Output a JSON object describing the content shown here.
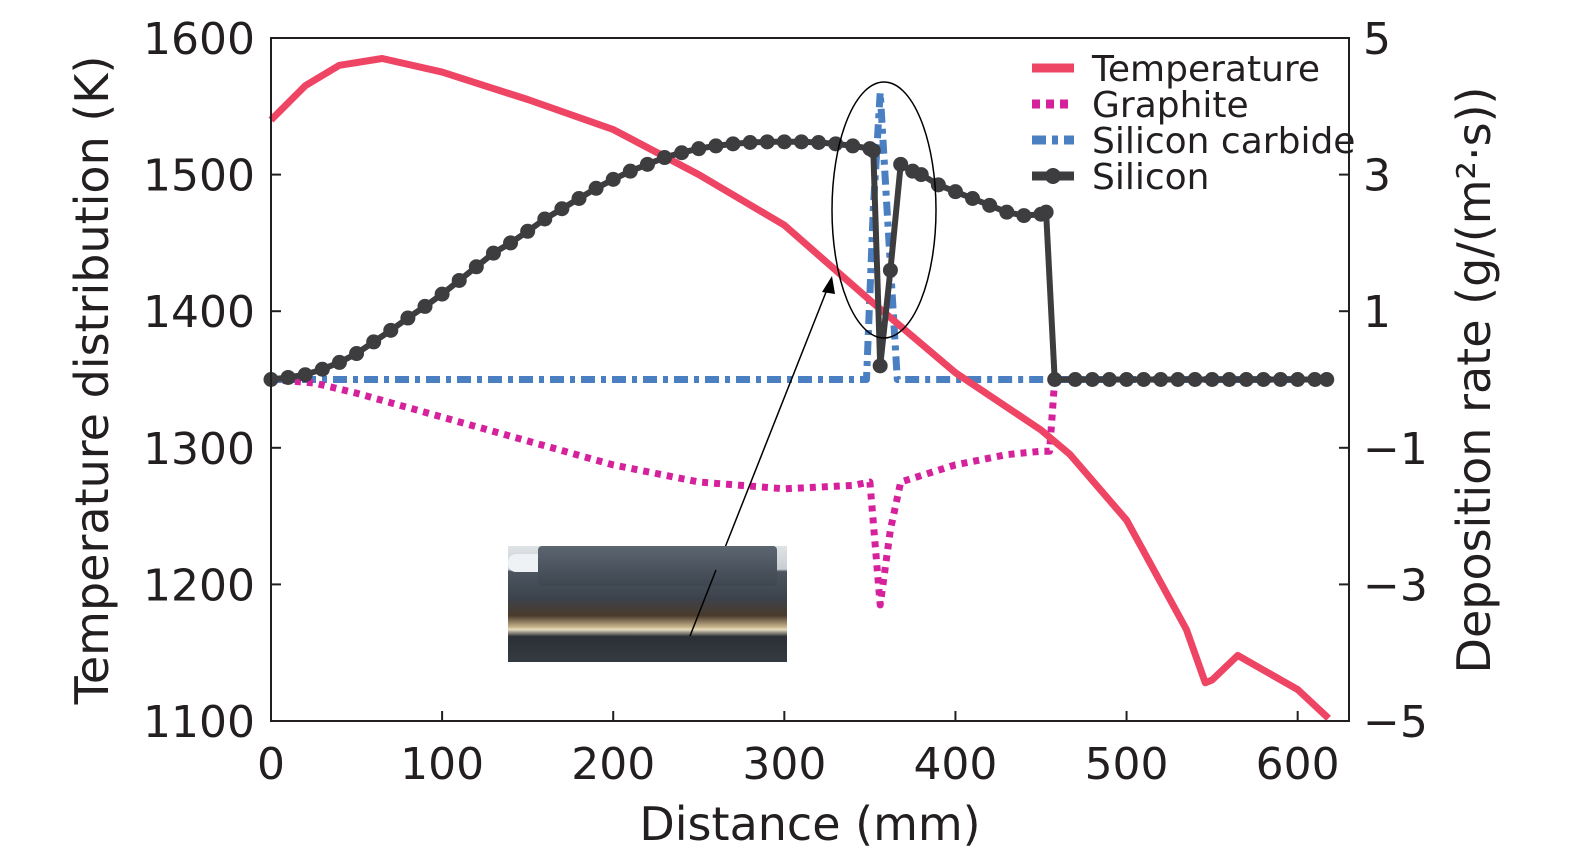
{
  "chart_data": {
    "type": "line",
    "xlabel": "Distance (mm)",
    "ylabel_left": "Temperature distribution (K)",
    "ylabel_right": "Deposition rate (g/(m²·s))",
    "xlim": [
      0,
      630
    ],
    "ylim_left": [
      1100,
      1600
    ],
    "ylim_right": [
      -5,
      5
    ],
    "x_ticks": [
      "0",
      "100",
      "200",
      "300",
      "400",
      "500",
      "600"
    ],
    "y_left_ticks": [
      "1100",
      "1200",
      "1300",
      "1400",
      "1500",
      "1600"
    ],
    "y_right_ticks": [
      "−5",
      "−3",
      "−1",
      "1",
      "3",
      "5"
    ],
    "legend_position": "top-right",
    "grid": false,
    "series": [
      {
        "name": "Temperature",
        "axis": "left",
        "color": "#ef4565",
        "style": "solid",
        "x": [
          0,
          20,
          40,
          65,
          100,
          150,
          200,
          250,
          300,
          350,
          400,
          450,
          467,
          500,
          535,
          546,
          550,
          565,
          600,
          618
        ],
        "y": [
          1540,
          1565,
          1580,
          1585,
          1575,
          1555,
          1533,
          1500,
          1463,
          1408,
          1355,
          1313,
          1295,
          1247,
          1167,
          1128,
          1130,
          1148,
          1123,
          1102
        ]
      },
      {
        "name": "Graphite",
        "axis": "right",
        "color": "#d6219c",
        "style": "dotted",
        "x": [
          0,
          25,
          50,
          100,
          150,
          200,
          250,
          300,
          340,
          350,
          356,
          362,
          368,
          400,
          430,
          450,
          455,
          458
        ],
        "y": [
          0,
          -0.05,
          -0.2,
          -0.55,
          -0.9,
          -1.25,
          -1.5,
          -1.6,
          -1.55,
          -1.5,
          -3.3,
          -2.2,
          -1.5,
          -1.25,
          -1.1,
          -1.05,
          -1.05,
          0
        ]
      },
      {
        "name": "Silicon carbide",
        "axis": "right",
        "color": "#4a7fc1",
        "style": "dashdot",
        "x": [
          0,
          348,
          352,
          356,
          360,
          366,
          370,
          617
        ],
        "y": [
          0,
          0,
          2.5,
          4.2,
          2.5,
          0,
          0,
          0
        ]
      },
      {
        "name": "Silicon",
        "axis": "right",
        "color": "#3d3d40",
        "style": "solid-markers",
        "x": [
          0,
          10,
          20,
          30,
          40,
          50,
          60,
          70,
          80,
          90,
          100,
          110,
          120,
          130,
          140,
          150,
          160,
          170,
          180,
          190,
          200,
          210,
          220,
          230,
          240,
          250,
          260,
          270,
          280,
          290,
          300,
          310,
          320,
          330,
          340,
          350,
          352,
          356,
          362,
          368,
          375,
          380,
          390,
          400,
          410,
          420,
          430,
          440,
          450,
          453,
          458,
          470,
          480,
          490,
          500,
          510,
          520,
          530,
          540,
          550,
          560,
          570,
          580,
          590,
          600,
          610,
          617
        ],
        "y": [
          0,
          0.03,
          0.07,
          0.15,
          0.25,
          0.38,
          0.55,
          0.72,
          0.9,
          1.07,
          1.25,
          1.45,
          1.65,
          1.85,
          2.0,
          2.17,
          2.35,
          2.5,
          2.65,
          2.8,
          2.93,
          3.05,
          3.15,
          3.25,
          3.32,
          3.38,
          3.42,
          3.45,
          3.47,
          3.48,
          3.48,
          3.48,
          3.47,
          3.45,
          3.42,
          3.38,
          3.35,
          0.2,
          1.6,
          3.15,
          3.05,
          3.0,
          2.85,
          2.75,
          2.65,
          2.55,
          2.45,
          2.4,
          2.42,
          2.45,
          0,
          0,
          0,
          0,
          0,
          0,
          0,
          0,
          0,
          0,
          0,
          0,
          0,
          0,
          0,
          0,
          0
        ]
      }
    ]
  }
}
